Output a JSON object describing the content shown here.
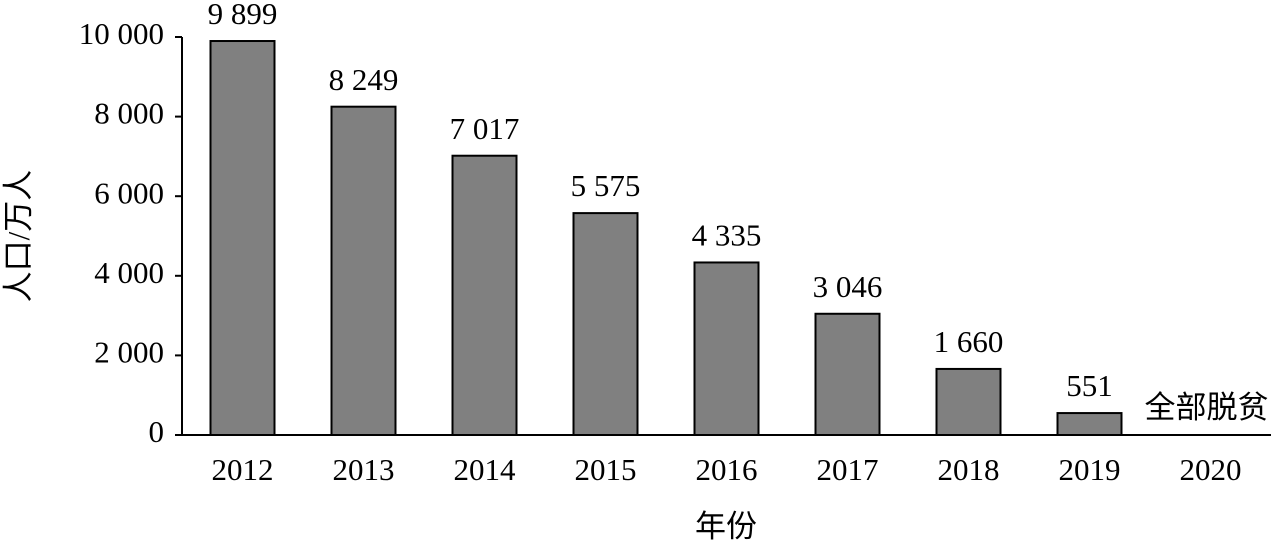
{
  "chart_data": {
    "type": "bar",
    "x_label": "年份",
    "y_label": "人口/万人",
    "categories": [
      "2012",
      "2013",
      "2014",
      "2015",
      "2016",
      "2017",
      "2018",
      "2019",
      "2020"
    ],
    "values": [
      9899,
      8249,
      7017,
      5575,
      4335,
      3046,
      1660,
      551,
      0
    ],
    "value_labels": [
      "9 899",
      "8 249",
      "7 017",
      "5 575",
      "4 335",
      "3 046",
      "1 660",
      "551",
      "全部脱贫"
    ],
    "color": "#808080",
    "ylim": [
      0,
      10000
    ],
    "yticks": [
      0,
      {
        "value": 2000,
        "label": "2 000"
      },
      {
        "value": 4000,
        "label": "4 000"
      },
      {
        "value": 6000,
        "label": "6 000"
      },
      {
        "value": 8000,
        "label": "8 000"
      },
      {
        "value": 10000,
        "label": "10 000"
      }
    ],
    "grid": false
  }
}
